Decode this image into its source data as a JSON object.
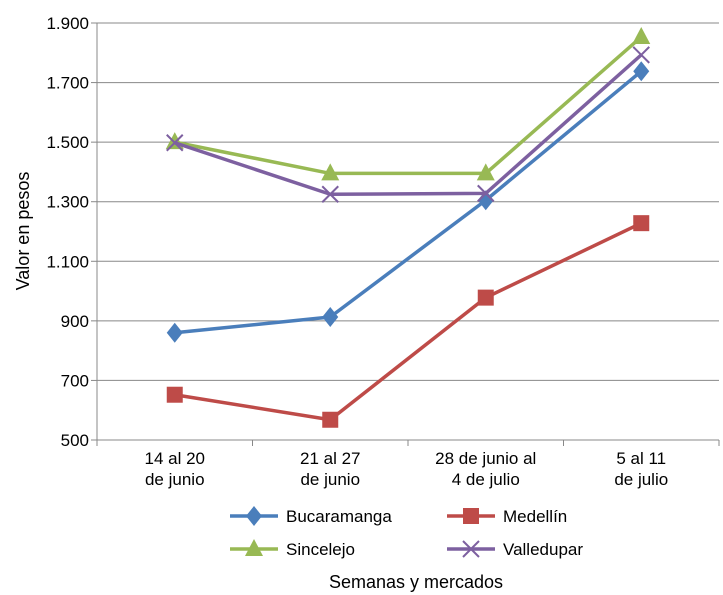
{
  "chart_data": {
    "type": "line",
    "title": "",
    "xlabel": "Semanas y mercados",
    "ylabel": "Valor en pesos",
    "categories": [
      [
        "14 al 20",
        "de junio"
      ],
      [
        "21 al 27",
        "de junio"
      ],
      [
        "28 de junio al",
        "4 de julio"
      ],
      [
        "5 al 11",
        "de julio"
      ]
    ],
    "ylim": [
      500,
      1900
    ],
    "yticks": [
      "500",
      "700",
      "900",
      "1.100",
      "1.300",
      "1.500",
      "1.700",
      "1.900"
    ],
    "ytick_values": [
      500,
      700,
      900,
      1100,
      1300,
      1500,
      1700,
      1900
    ],
    "grid": true,
    "legend_position": "bottom",
    "series": [
      {
        "name": "Bucaramanga",
        "color": "#4a7ebb",
        "marker": "diamond",
        "values": [
          860,
          913,
          1305,
          1738
        ]
      },
      {
        "name": "Medellín",
        "color": "#be4b48",
        "marker": "square",
        "values": [
          652,
          568,
          978,
          1228
        ]
      },
      {
        "name": "Sincelejo",
        "color": "#98b954",
        "marker": "triangle",
        "values": [
          1500,
          1395,
          1395,
          1853
        ]
      },
      {
        "name": "Valledupar",
        "color": "#7d60a0",
        "marker": "x",
        "values": [
          1498,
          1325,
          1328,
          1793
        ]
      }
    ]
  }
}
